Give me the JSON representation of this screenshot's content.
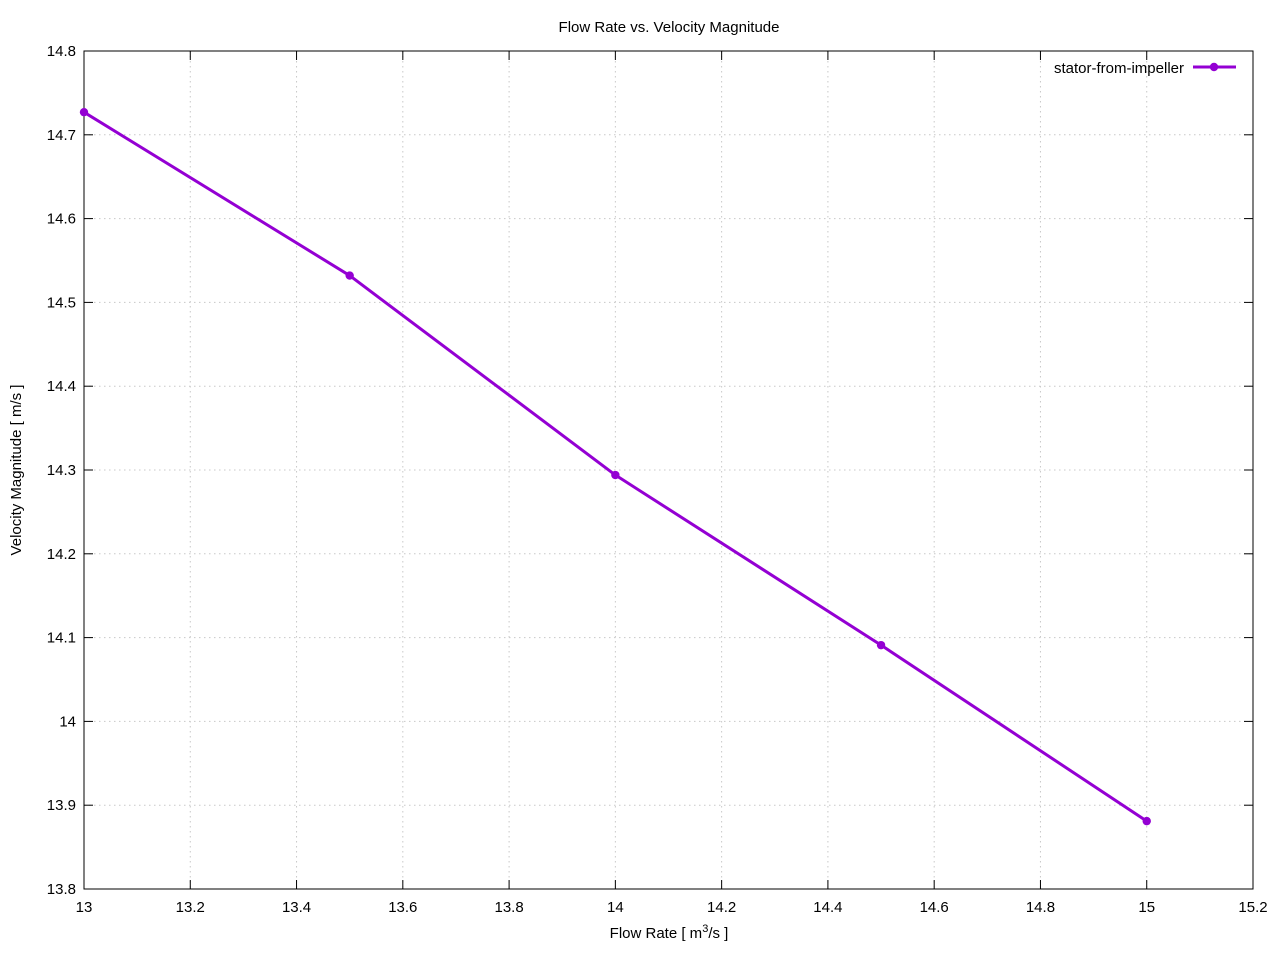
{
  "chart_data": {
    "type": "line",
    "title": "Flow Rate vs. Velocity Magnitude",
    "xlabel": {
      "prefix": "Flow Rate [ m",
      "superscript": "3",
      "suffix": "/s ]"
    },
    "ylabel": "Velocity Magnitude [ m/s ]",
    "xlim": [
      13,
      15.2
    ],
    "ylim": [
      13.8,
      14.8
    ],
    "xticks": [
      "13",
      "13.2",
      "13.4",
      "13.6",
      "13.8",
      "14",
      "14.2",
      "14.4",
      "14.6",
      "14.8",
      "15",
      "15.2"
    ],
    "yticks": [
      "13.8",
      "13.9",
      "14",
      "14.1",
      "14.2",
      "14.3",
      "14.4",
      "14.5",
      "14.6",
      "14.7",
      "14.8"
    ],
    "grid": true,
    "legend_position": "top-right",
    "series": [
      {
        "name": "stator-from-impeller",
        "color": "#9400d3",
        "marker": "circle",
        "x": [
          13,
          13.5,
          14,
          14.5,
          15
        ],
        "y": [
          14.727,
          14.532,
          14.294,
          14.091,
          13.881
        ]
      }
    ]
  }
}
